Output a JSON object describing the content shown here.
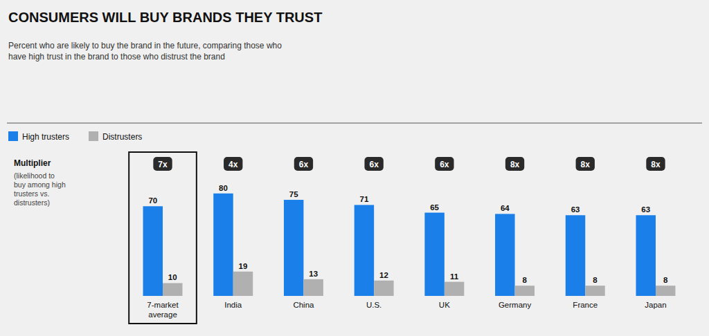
{
  "chart_data": {
    "type": "bar",
    "title": "CONSUMERS WILL BUY BRANDS THEY TRUST",
    "subtitle": "Percent who are likely to buy the brand in the future, comparing those who\nhave high trust in the brand to those who distrust the brand",
    "categories": [
      "7-market\naverage",
      "India",
      "China",
      "U.S.",
      "UK",
      "Germany",
      "France",
      "Japan"
    ],
    "series": [
      {
        "name": "High trusters",
        "color": "#1a7fe8",
        "values": [
          70,
          80,
          75,
          71,
          65,
          64,
          63,
          63
        ]
      },
      {
        "name": "Distrusters",
        "color": "#b0b0b0",
        "values": [
          10,
          19,
          13,
          12,
          11,
          8,
          8,
          8
        ]
      }
    ],
    "annotations": {
      "multiplier_label": "Multiplier",
      "multiplier_desc": "(likelihood to\nbuy among high\ntrusters vs.\ndistrusters)",
      "multipliers": [
        "7x",
        "4x",
        "6x",
        "6x",
        "6x",
        "8x",
        "8x",
        "8x"
      ]
    },
    "ylim": [
      0,
      95
    ],
    "grid": false,
    "legend": "upper left",
    "data_labels": true,
    "tick_labels": false
  }
}
